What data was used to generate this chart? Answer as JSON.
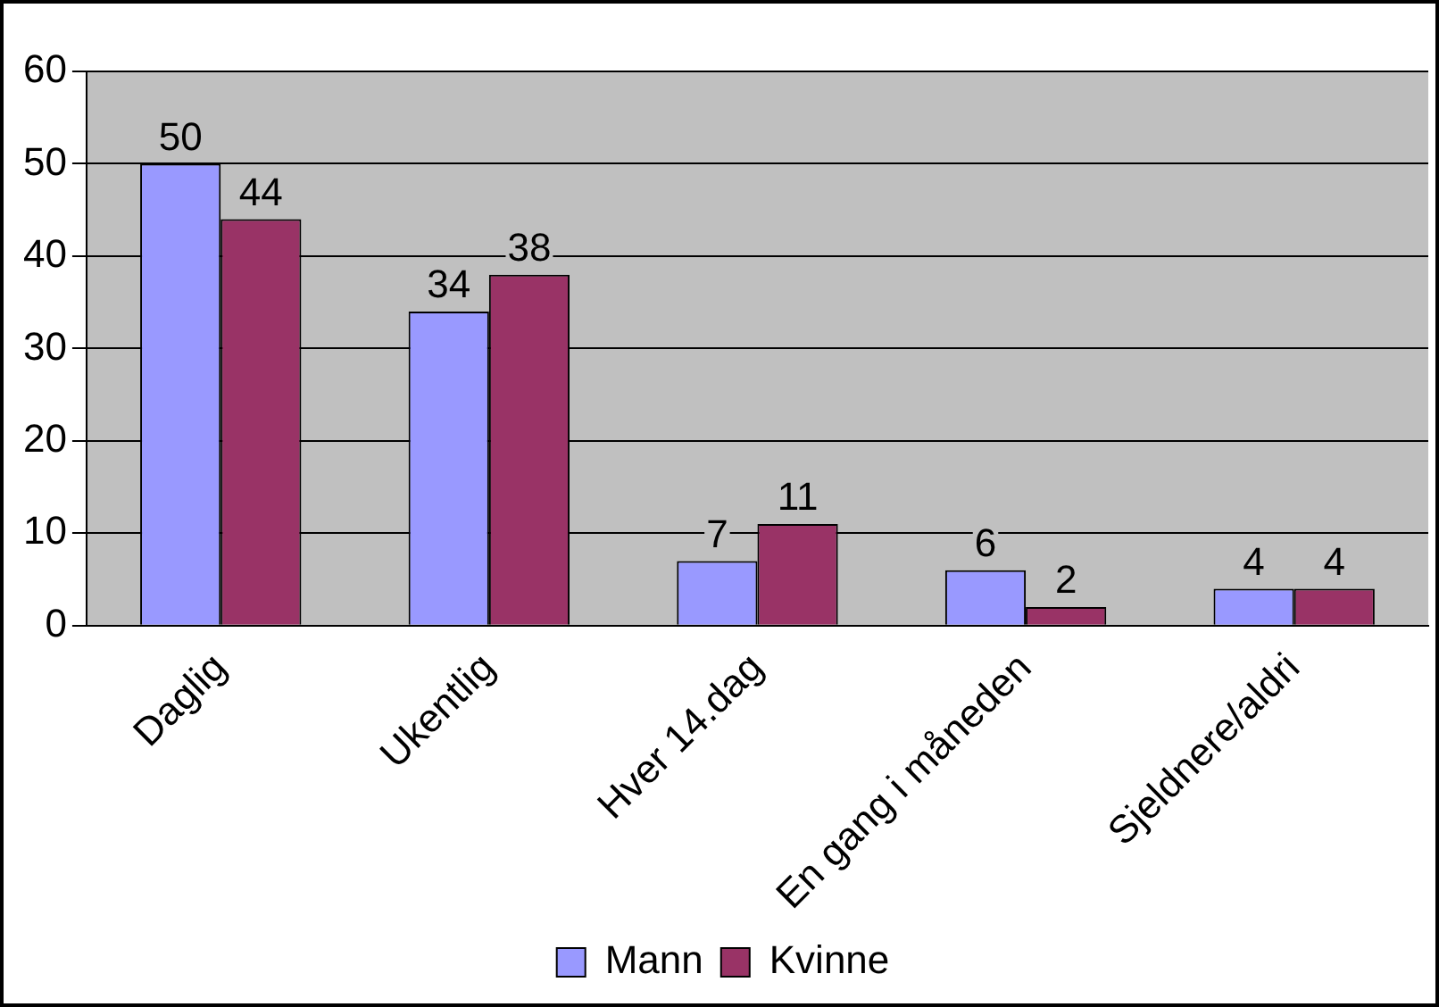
{
  "chart_data": {
    "type": "bar",
    "categories": [
      "Daglig",
      "Ukentlig",
      "Hver 14.dag",
      "En gang i måneden",
      "Sjeldnere/aldri"
    ],
    "series": [
      {
        "name": "Mann",
        "color": "#9999ff",
        "values": [
          50,
          34,
          7,
          6,
          4
        ]
      },
      {
        "name": "Kvinne",
        "color": "#993366",
        "values": [
          44,
          38,
          11,
          2,
          4
        ]
      }
    ],
    "ylim": [
      0,
      60
    ],
    "yticks": [
      0,
      10,
      20,
      30,
      40,
      50,
      60
    ],
    "grid": "y",
    "legend": "bottom",
    "data_labels": true
  }
}
